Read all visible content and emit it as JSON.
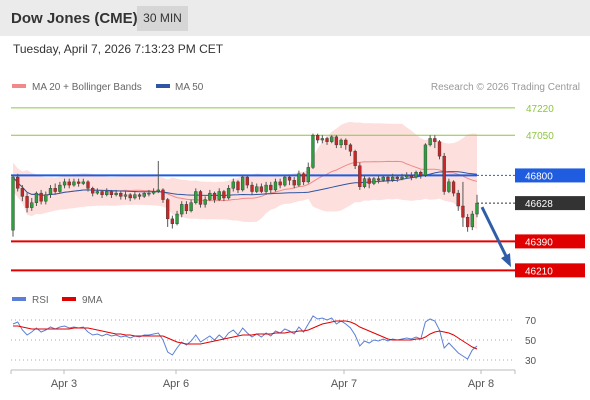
{
  "header": {
    "title": "Dow Jones (CME)",
    "interval": "30 MIN",
    "timestamp": "Tuesday, April 7, 2026 7:13:23 PM CET"
  },
  "legend": {
    "ma20_label": "MA 20 + Bollinger Bands",
    "ma50_label": "MA 50",
    "credit": "Research © 2026 Trading Central",
    "ma20_color": "#f08a8a",
    "ma50_color": "#2f55a4"
  },
  "rsi_legend": {
    "rsi_label": "RSI",
    "ma9_label": "9MA",
    "rsi_color": "#5b7fd6",
    "ma9_color": "#e00000"
  },
  "chart_data": [
    {
      "type": "candlestick",
      "price_axis": {
        "min": 46150,
        "max": 47300
      },
      "x_ticks": [
        "Apr 3",
        "Apr 6",
        "Apr 7",
        "Apr 8"
      ],
      "levels": [
        {
          "value": 47220,
          "label": "47220",
          "kind": "resistance",
          "color": "#8cc63f"
        },
        {
          "value": 47050,
          "label": "47050",
          "kind": "resistance",
          "color": "#8cc63f"
        },
        {
          "value": 46800,
          "label": "46800",
          "kind": "pivot",
          "color": "#1f5ce0"
        },
        {
          "value": 46628,
          "label": "46628",
          "kind": "last_price",
          "color": "#333333"
        },
        {
          "value": 46390,
          "label": "46390",
          "kind": "target",
          "color": "#e00000"
        },
        {
          "value": 46210,
          "label": "46210",
          "kind": "target",
          "color": "#e00000"
        }
      ],
      "projection": {
        "from": 46628,
        "to": 46230,
        "direction": "down",
        "color": "#2f5ea8"
      },
      "candles": [
        [
          46460,
          46790,
          46800,
          46420
        ],
        [
          46790,
          46720,
          46810,
          46700
        ],
        [
          46720,
          46670,
          46740,
          46640
        ],
        [
          46670,
          46600,
          46690,
          46570
        ],
        [
          46600,
          46630,
          46660,
          46580
        ],
        [
          46630,
          46690,
          46700,
          46610
        ],
        [
          46690,
          46640,
          46710,
          46620
        ],
        [
          46640,
          46680,
          46700,
          46620
        ],
        [
          46680,
          46720,
          46740,
          46660
        ],
        [
          46720,
          46700,
          46750,
          46680
        ],
        [
          46700,
          46740,
          46760,
          46690
        ],
        [
          46740,
          46760,
          46780,
          46720
        ],
        [
          46760,
          46740,
          46780,
          46720
        ],
        [
          46740,
          46760,
          46780,
          46730
        ],
        [
          46760,
          46750,
          46780,
          46730
        ],
        [
          46750,
          46760,
          46780,
          46740
        ],
        [
          46760,
          46720,
          46770,
          46700
        ],
        [
          46720,
          46690,
          46730,
          46670
        ],
        [
          46690,
          46700,
          46720,
          46680
        ],
        [
          46700,
          46680,
          46710,
          46660
        ],
        [
          46680,
          46700,
          46720,
          46670
        ],
        [
          46700,
          46680,
          46710,
          46660
        ],
        [
          46680,
          46690,
          46710,
          46670
        ],
        [
          46690,
          46670,
          46700,
          46650
        ],
        [
          46670,
          46680,
          46700,
          46650
        ],
        [
          46680,
          46660,
          46690,
          46640
        ],
        [
          46660,
          46680,
          46700,
          46650
        ],
        [
          46680,
          46670,
          46690,
          46650
        ],
        [
          46670,
          46690,
          46700,
          46660
        ],
        [
          46690,
          46690,
          46710,
          46670
        ],
        [
          46690,
          46700,
          46720,
          46680
        ],
        [
          46700,
          46710,
          46890,
          46690
        ],
        [
          46710,
          46650,
          46720,
          46630
        ],
        [
          46650,
          46530,
          46660,
          46480
        ],
        [
          46530,
          46500,
          46550,
          46470
        ],
        [
          46500,
          46560,
          46580,
          46490
        ],
        [
          46560,
          46620,
          46640,
          46540
        ],
        [
          46620,
          46580,
          46640,
          46560
        ],
        [
          46580,
          46630,
          46650,
          46570
        ],
        [
          46630,
          46700,
          46720,
          46620
        ],
        [
          46700,
          46620,
          46710,
          46600
        ],
        [
          46620,
          46650,
          46670,
          46600
        ],
        [
          46650,
          46690,
          46710,
          46640
        ],
        [
          46690,
          46650,
          46700,
          46630
        ],
        [
          46650,
          46700,
          46720,
          46640
        ],
        [
          46700,
          46660,
          46710,
          46640
        ],
        [
          46660,
          46720,
          46740,
          46650
        ],
        [
          46720,
          46760,
          46780,
          46700
        ],
        [
          46760,
          46710,
          46770,
          46690
        ],
        [
          46710,
          46790,
          46800,
          46700
        ],
        [
          46790,
          46740,
          46800,
          46720
        ],
        [
          46740,
          46700,
          46760,
          46680
        ],
        [
          46700,
          46730,
          46750,
          46690
        ],
        [
          46730,
          46700,
          46750,
          46690
        ],
        [
          46700,
          46740,
          46760,
          46680
        ],
        [
          46740,
          46710,
          46760,
          46690
        ],
        [
          46710,
          46760,
          46780,
          46700
        ],
        [
          46760,
          46740,
          46780,
          46720
        ],
        [
          46740,
          46790,
          46800,
          46730
        ],
        [
          46790,
          46770,
          46800,
          46740
        ],
        [
          46770,
          46740,
          46790,
          46720
        ],
        [
          46740,
          46810,
          46830,
          46730
        ],
        [
          46810,
          46760,
          46820,
          46740
        ],
        [
          46760,
          46850,
          46880,
          46750
        ],
        [
          46850,
          47050,
          47060,
          46840
        ],
        [
          47050,
          47020,
          47060,
          47000
        ],
        [
          47020,
          47030,
          47050,
          47000
        ],
        [
          47030,
          47010,
          47040,
          46990
        ],
        [
          47010,
          47040,
          47050,
          47000
        ],
        [
          47040,
          46990,
          47050,
          46970
        ],
        [
          46990,
          47020,
          47030,
          46970
        ],
        [
          47020,
          46990,
          47030,
          46960
        ],
        [
          46990,
          46950,
          47000,
          46920
        ],
        [
          46950,
          46860,
          46960,
          46840
        ],
        [
          46860,
          46730,
          46880,
          46710
        ],
        [
          46730,
          46780,
          46800,
          46720
        ],
        [
          46780,
          46750,
          46790,
          46720
        ],
        [
          46750,
          46780,
          46790,
          46740
        ],
        [
          46780,
          46770,
          46800,
          46750
        ],
        [
          46770,
          46790,
          46800,
          46760
        ],
        [
          46790,
          46770,
          46800,
          46750
        ],
        [
          46770,
          46790,
          46810,
          46760
        ],
        [
          46790,
          46780,
          46800,
          46760
        ],
        [
          46780,
          46790,
          46810,
          46770
        ],
        [
          46790,
          46800,
          46820,
          46780
        ],
        [
          46800,
          46790,
          46820,
          46770
        ],
        [
          46790,
          46820,
          46830,
          46780
        ],
        [
          46820,
          46800,
          46830,
          46780
        ],
        [
          46800,
          46990,
          47000,
          46790
        ],
        [
          46990,
          47030,
          47050,
          46980
        ],
        [
          47030,
          47010,
          47050,
          46970
        ],
        [
          47010,
          46920,
          47020,
          46900
        ],
        [
          46920,
          46700,
          46940,
          46680
        ],
        [
          46700,
          46760,
          46780,
          46690
        ],
        [
          46760,
          46690,
          46770,
          46670
        ],
        [
          46690,
          46610,
          46710,
          46580
        ],
        [
          46610,
          46540,
          46760,
          46480
        ],
        [
          46540,
          46480,
          46560,
          46450
        ],
        [
          46480,
          46560,
          46580,
          46460
        ],
        [
          46560,
          46628,
          46680,
          46540
        ]
      ]
    },
    {
      "type": "line",
      "title": "RSI",
      "y_ticks": [
        70,
        50,
        30
      ],
      "ylim": [
        22,
        78
      ],
      "series": [
        {
          "name": "RSI",
          "color": "#5b7fd6",
          "values": [
            66,
            68,
            60,
            55,
            58,
            62,
            58,
            60,
            63,
            61,
            63,
            64,
            62,
            63,
            62,
            63,
            58,
            55,
            56,
            54,
            56,
            54,
            55,
            53,
            54,
            52,
            54,
            53,
            55,
            55,
            56,
            57,
            50,
            38,
            35,
            42,
            48,
            45,
            49,
            55,
            48,
            51,
            54,
            50,
            55,
            51,
            57,
            60,
            55,
            62,
            57,
            53,
            56,
            53,
            57,
            54,
            59,
            57,
            61,
            59,
            56,
            63,
            58,
            66,
            74,
            71,
            72,
            70,
            72,
            66,
            69,
            66,
            62,
            55,
            44,
            49,
            47,
            50,
            49,
            51,
            49,
            51,
            50,
            51,
            52,
            51,
            53,
            51,
            68,
            71,
            69,
            60,
            42,
            47,
            42,
            37,
            34,
            31,
            40,
            44
          ]
        },
        {
          "name": "9MA",
          "color": "#e00000",
          "values": [
            64,
            64,
            63,
            62,
            61,
            61,
            61,
            61,
            61,
            61,
            61,
            61,
            61,
            62,
            62,
            62,
            62,
            61,
            60,
            59,
            58,
            57,
            56,
            56,
            55,
            55,
            54,
            54,
            54,
            54,
            54,
            54,
            54,
            52,
            50,
            48,
            47,
            46,
            46,
            46,
            46,
            47,
            48,
            49,
            50,
            51,
            52,
            53,
            54,
            55,
            55,
            55,
            56,
            56,
            56,
            56,
            57,
            57,
            57,
            58,
            58,
            59,
            59,
            60,
            62,
            64,
            66,
            67,
            68,
            69,
            69,
            69,
            68,
            66,
            63,
            61,
            59,
            57,
            55,
            53,
            51,
            50,
            50,
            50,
            50,
            50,
            51,
            51,
            53,
            56,
            58,
            59,
            58,
            57,
            55,
            52,
            49,
            46,
            43,
            41
          ]
        }
      ]
    }
  ]
}
